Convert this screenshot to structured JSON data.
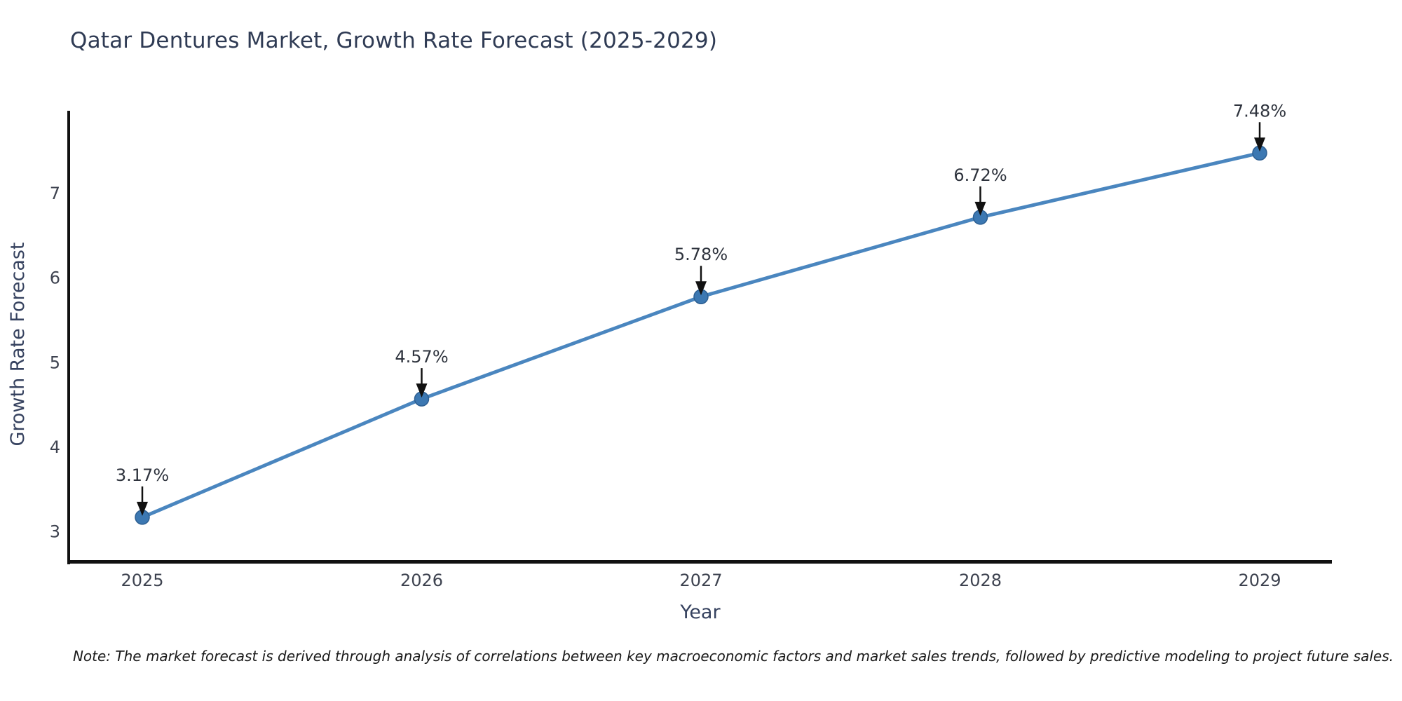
{
  "title": "Qatar Dentures Market, Growth Rate Forecast (2025-2029)",
  "note": "Note: The market forecast is derived through analysis of correlations between key macroeconomic factors and market sales trends, followed by predictive modeling to project future sales.",
  "colors": {
    "background": "#ffffff",
    "title": "#2f3b54",
    "axis_title": "#36425f",
    "tick_label": "#3e4350",
    "axis_line": "#111111",
    "line": "#4a86bf",
    "marker_fill": "#3c78b2",
    "marker_stroke": "#2d5f92",
    "annotation_text": "#2e333d",
    "arrow": "#111111"
  },
  "chart_data": {
    "type": "line",
    "title": "Qatar Dentures Market, Growth Rate Forecast (2025-2029)",
    "xlabel": "Year",
    "ylabel": "Growth Rate Forecast",
    "categories": [
      "2025",
      "2026",
      "2027",
      "2028",
      "2029"
    ],
    "values": [
      3.17,
      4.57,
      5.78,
      6.72,
      7.48
    ],
    "point_labels": [
      "3.17%",
      "4.57%",
      "5.78%",
      "6.72%",
      "7.48%"
    ],
    "y_ticks": [
      3,
      4,
      5,
      6,
      7
    ],
    "ylim": [
      2.63,
      7.98
    ],
    "grid": false,
    "legend": false,
    "marker_style": "circle",
    "annotation_style": "value label with downward black arrow above each point"
  }
}
